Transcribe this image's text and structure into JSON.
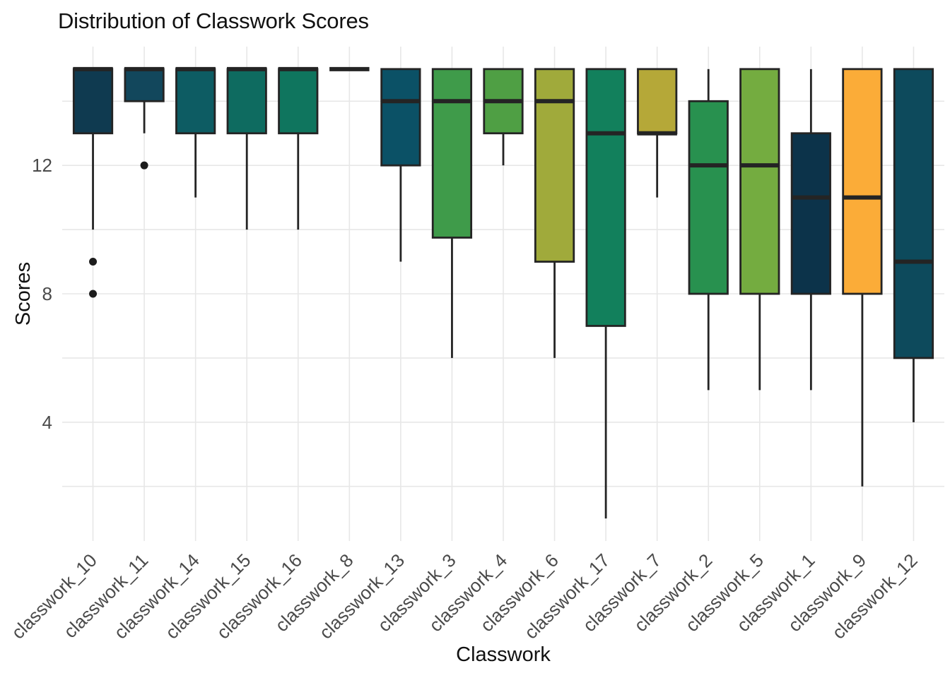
{
  "chart_data": {
    "type": "boxplot",
    "title": "Distribution of Classwork Scores",
    "xlabel": "Classwork",
    "ylabel": "Scores",
    "legend": "none",
    "grid": "on",
    "ylim": [
      0.3,
      15.7
    ],
    "y_tick_labels": [
      12,
      8,
      4
    ],
    "y_gridlines": [
      2,
      4,
      6,
      8,
      10,
      12,
      14
    ],
    "categories": [
      "classwork_10",
      "classwork_11",
      "classwork_14",
      "classwork_15",
      "classwork_16",
      "classwork_8",
      "classwork_13",
      "classwork_3",
      "classwork_4",
      "classwork_6",
      "classwork_17",
      "classwork_7",
      "classwork_2",
      "classwork_5",
      "classwork_1",
      "classwork_9",
      "classwork_12"
    ],
    "boxes": [
      {
        "label": "classwork_10",
        "whisker_low": 10,
        "q1": 13,
        "median": 15,
        "q3": 15,
        "whisker_high": 15,
        "outliers": [
          9,
          8
        ],
        "color": "#0f3a50"
      },
      {
        "label": "classwork_11",
        "whisker_low": 13,
        "q1": 14,
        "median": 15,
        "q3": 15,
        "whisker_high": 15,
        "outliers": [
          12
        ],
        "color": "#12475c"
      },
      {
        "label": "classwork_14",
        "whisker_low": 11,
        "q1": 13,
        "median": 15,
        "q3": 15,
        "whisker_high": 15,
        "outliers": [],
        "color": "#0d5c63"
      },
      {
        "label": "classwork_15",
        "whisker_low": 10,
        "q1": 13,
        "median": 15,
        "q3": 15,
        "whisker_high": 15,
        "outliers": [],
        "color": "#0e6b60"
      },
      {
        "label": "classwork_16",
        "whisker_low": 10,
        "q1": 13,
        "median": 15,
        "q3": 15,
        "whisker_high": 15,
        "outliers": [],
        "color": "#0f755e"
      },
      {
        "label": "classwork_8",
        "whisker_low": 15,
        "q1": 15,
        "median": 15,
        "q3": 15,
        "whisker_high": 15,
        "outliers": [],
        "color": "#222222"
      },
      {
        "label": "classwork_13",
        "whisker_low": 9,
        "q1": 12,
        "median": 14,
        "q3": 15,
        "whisker_high": 15,
        "outliers": [],
        "color": "#0b5166"
      },
      {
        "label": "classwork_3",
        "whisker_low": 6,
        "q1": 9.75,
        "median": 14,
        "q3": 15,
        "whisker_high": 15,
        "outliers": [],
        "color": "#3f9b4a"
      },
      {
        "label": "classwork_4",
        "whisker_low": 12,
        "q1": 13,
        "median": 14,
        "q3": 15,
        "whisker_high": 15,
        "outliers": [],
        "color": "#4f9f44"
      },
      {
        "label": "classwork_6",
        "whisker_low": 6,
        "q1": 9,
        "median": 14,
        "q3": 15,
        "whisker_high": 15,
        "outliers": [],
        "color": "#a0aa3b"
      },
      {
        "label": "classwork_17",
        "whisker_low": 1,
        "q1": 7,
        "median": 13,
        "q3": 15,
        "whisker_high": 15,
        "outliers": [],
        "color": "#12805c"
      },
      {
        "label": "classwork_7",
        "whisker_low": 11,
        "q1": 13,
        "median": 13,
        "q3": 15,
        "whisker_high": 15,
        "outliers": [],
        "color": "#b5a838"
      },
      {
        "label": "classwork_2",
        "whisker_low": 5,
        "q1": 8,
        "median": 12,
        "q3": 14,
        "whisker_high": 15,
        "outliers": [],
        "color": "#28914f"
      },
      {
        "label": "classwork_5",
        "whisker_low": 5,
        "q1": 8,
        "median": 12,
        "q3": 15,
        "whisker_high": 15,
        "outliers": [],
        "color": "#74ac40"
      },
      {
        "label": "classwork_1",
        "whisker_low": 5,
        "q1": 8,
        "median": 11,
        "q3": 13,
        "whisker_high": 15,
        "outliers": [],
        "color": "#0c334a"
      },
      {
        "label": "classwork_9",
        "whisker_low": 2,
        "q1": 8,
        "median": 11,
        "q3": 15,
        "whisker_high": 15,
        "outliers": [],
        "color": "#fbac38"
      },
      {
        "label": "classwork_12",
        "whisker_low": 4,
        "q1": 6,
        "median": 9,
        "q3": 15,
        "whisker_high": 15,
        "outliers": [],
        "color": "#0d4a5c"
      }
    ],
    "style": {
      "grid_color": "#e7e7e7",
      "box_border_color": "#242424",
      "outlier_color": "#1c1c1c",
      "tick_label_color": "#4a4a4a",
      "axis_title_color": "#111111",
      "title_color": "#111111",
      "background": "#ffffff"
    }
  }
}
